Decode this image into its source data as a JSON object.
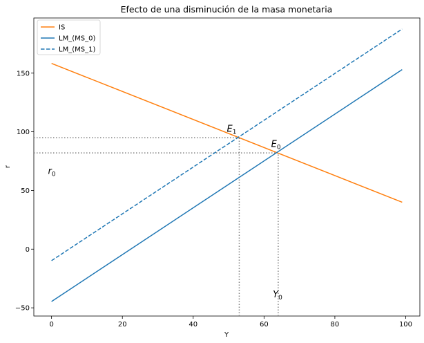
{
  "chart_data": {
    "type": "line",
    "title": "Efecto de una disminución de la masa monetaria",
    "xlabel": "Y",
    "ylabel": "r",
    "xlim": [
      -5,
      104
    ],
    "ylim": [
      -57,
      197
    ],
    "xticks": [
      0,
      20,
      40,
      60,
      80,
      100
    ],
    "yticks": [
      -50,
      0,
      50,
      100,
      150
    ],
    "grid": false,
    "legend_position": "top-left",
    "series": [
      {
        "name": "IS",
        "color": "#ff7f0e",
        "style": "solid",
        "x": [
          0,
          99
        ],
        "y": [
          158.3,
          40
        ]
      },
      {
        "name": "LM_(MS_0)",
        "color": "#1f77b4",
        "style": "solid",
        "x": [
          0,
          99
        ],
        "y": [
          -44.6,
          153
        ]
      },
      {
        "name": "LM_(MS_1)",
        "color": "#1f77b4",
        "style": "dashed",
        "x": [
          0,
          99
        ],
        "y": [
          -9.8,
          187.6
        ]
      }
    ],
    "guides": [
      {
        "kind": "hline",
        "y": 95,
        "x_to": 53
      },
      {
        "kind": "vline",
        "x": 53,
        "y_to": 95
      },
      {
        "kind": "hline",
        "y": 82,
        "x_to": 64
      },
      {
        "kind": "vline",
        "x": 64,
        "y_to": 82
      }
    ],
    "annotations": [
      {
        "base": "E",
        "sub": "1",
        "x": 49.5,
        "y": 100
      },
      {
        "base": "E",
        "sub": "0",
        "x": 62,
        "y": 87
      },
      {
        "base": "r",
        "sub": "0",
        "x": -1,
        "y": 64
      },
      {
        "base": "Y",
        "sub": "0",
        "x": 62.5,
        "y": -41
      }
    ]
  }
}
